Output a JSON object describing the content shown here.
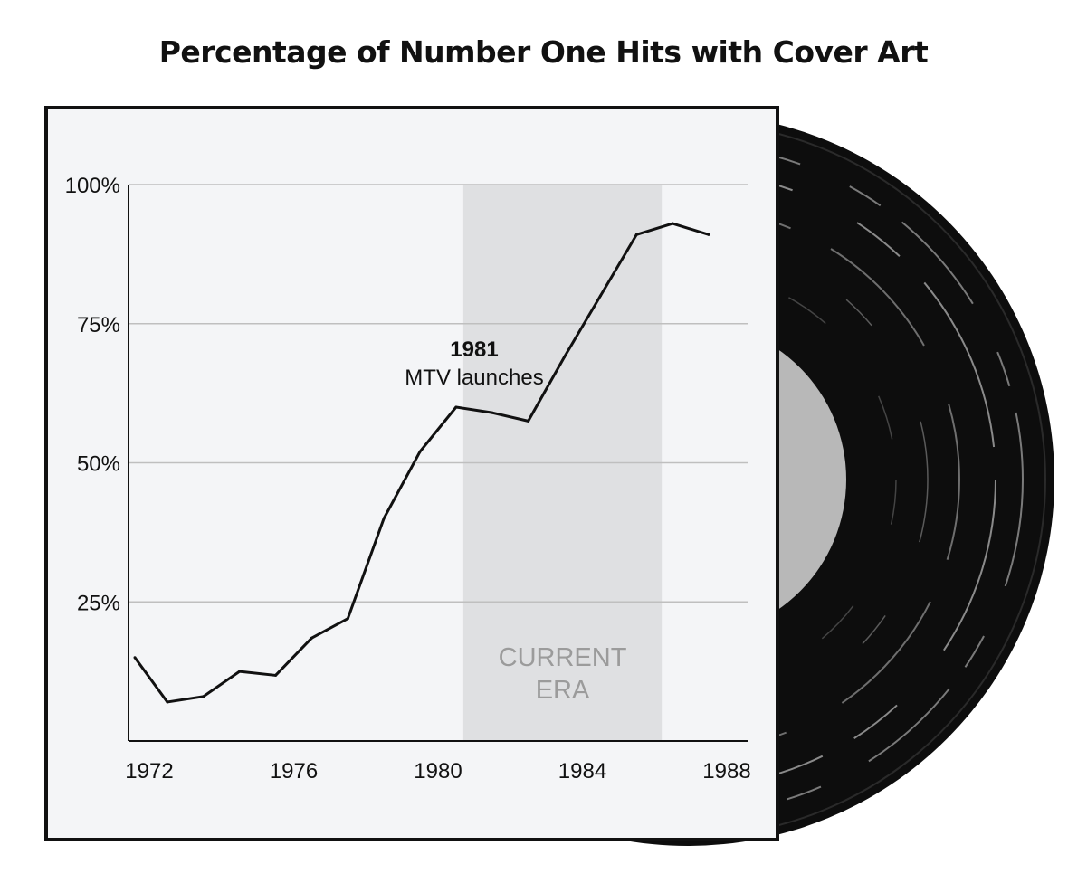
{
  "chart_data": {
    "type": "line",
    "title": "Percentage of Number One Hits with Cover Art",
    "x": [
      1971.9,
      1972.8,
      1973.8,
      1974.8,
      1975.8,
      1976.8,
      1977.8,
      1978.8,
      1979.8,
      1980.8,
      1981.8,
      1982.8,
      1983.8,
      1984.8,
      1985.8,
      1986.8,
      1987.8
    ],
    "series": [
      {
        "values": [
          15,
          7,
          8,
          12.5,
          11.8,
          18.5,
          22,
          40,
          52,
          60,
          59,
          57.5,
          69,
          80,
          91,
          93,
          91
        ]
      }
    ],
    "y_tick_labels": [
      "100%",
      "75%",
      "50%",
      "25%"
    ],
    "y_ticks": [
      100,
      75,
      50,
      25
    ],
    "x_tick_labels": [
      "1972",
      "1976",
      "1980",
      "1984",
      "1988"
    ],
    "x_ticks": [
      1972,
      1976,
      1980,
      1984,
      1988
    ],
    "xlim": [
      1972,
      1988
    ],
    "ylim": [
      0,
      100
    ],
    "grid": true,
    "shaded_region": {
      "x_start": 1981,
      "x_end": 1986.5,
      "label_line1": "CURRENT",
      "label_line2": "ERA"
    },
    "annotation": {
      "x": 1981,
      "year": "1981",
      "text": "MTV launches"
    },
    "colors": {
      "line": "#111111",
      "plot_bg": "#f4f5f7",
      "shade": "#dfe0e2",
      "grid": "#bfbfbf",
      "era_text": "#9b9b9b",
      "record": "#0d0d0d",
      "record_label": "#b8b8b8"
    }
  }
}
